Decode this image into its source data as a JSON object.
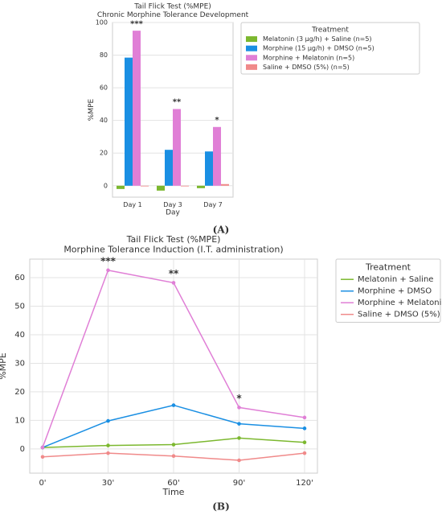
{
  "chart_data": [
    {
      "type": "bar",
      "title": "Tail Flick Test (%MPE)",
      "subtitle": "Chronic Morphine Tolerance Development",
      "x_label": "Day",
      "y_label": "%MPE",
      "categories": [
        "Day 1",
        "Day 3",
        "Day 7"
      ],
      "series": [
        {
          "name": "Melatonin (3 μg/h) + Saline (n=5)",
          "color": "#7cb82f",
          "values": [
            -2,
            -3,
            -1.5
          ]
        },
        {
          "name": "Morphine (15 μg/h) + DMSO (n=5)",
          "color": "#1a8fe3",
          "values": [
            78.5,
            22,
            21
          ]
        },
        {
          "name": "Morphine + Melatonin (n=5)",
          "color": "#e07fd6",
          "values": [
            95,
            47,
            36
          ]
        },
        {
          "name": "Saline + DMSO (5%) (n=5)",
          "color": "#f08a8a",
          "values": [
            0,
            0,
            1
          ]
        }
      ],
      "annotations": [
        "***",
        "**",
        "*"
      ],
      "ylim": [
        -7,
        100
      ],
      "yticks": [
        0,
        20,
        40,
        60,
        80,
        100
      ],
      "grid": true,
      "legend_title": "Treatment",
      "legend_position": "outside right",
      "caption": "(A)"
    },
    {
      "type": "line",
      "title": "Tail Flick Test (%MPE)",
      "subtitle": "Morphine Tolerance Induction (I.T. administration)",
      "x_label": "Time",
      "y_label": "%MPE",
      "categories": [
        "0'",
        "30'",
        "60'",
        "90'",
        "120'"
      ],
      "series": [
        {
          "name": "Melatonin + Saline",
          "color": "#7cb82f",
          "values": [
            0.5,
            1.2,
            1.5,
            3.8,
            2.3
          ]
        },
        {
          "name": "Morphine + DMSO",
          "color": "#1a8fe3",
          "values": [
            0.5,
            9.8,
            15.3,
            8.8,
            7.2
          ]
        },
        {
          "name": "Morphine + Melatonin",
          "color": "#e07fd6",
          "values": [
            0.5,
            62.6,
            58.2,
            14.5,
            11
          ]
        },
        {
          "name": "Saline + DMSO (5%)",
          "color": "#f08a8a",
          "values": [
            -2.8,
            -1.5,
            -2.5,
            -4,
            -1.5
          ]
        }
      ],
      "annotations": [
        null,
        "***",
        "**",
        "*",
        null
      ],
      "ylim": [
        -8.5,
        66.5
      ],
      "yticks": [
        0,
        10,
        20,
        30,
        40,
        50,
        60
      ],
      "grid": true,
      "legend_title": "Treatment",
      "legend_position": "outside right",
      "caption": "(B)"
    }
  ]
}
